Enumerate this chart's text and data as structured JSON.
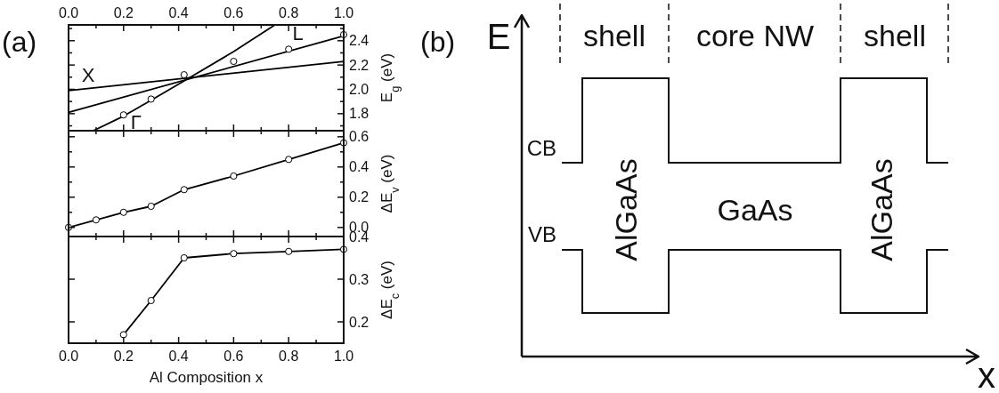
{
  "chart_data": [
    {
      "type": "line",
      "ylabel": "E$_{g}$ (eV)",
      "annotations": [
        "(a)"
      ],
      "xlim": [
        0,
        1
      ],
      "xticks": [
        0,
        {
          "value": 0.1,
          "label": null
        },
        0.2,
        {
          "value": 0.3,
          "label": null
        },
        0.4,
        {
          "value": 0.5,
          "label": null
        },
        0.6,
        {
          "value": 0.7,
          "label": null
        },
        0.8,
        {
          "value": 0.9,
          "label": null
        },
        1.0
      ],
      "x2lim": [
        0,
        1
      ],
      "x2ticks": [
        {
          "value": 0,
          "label": "0.0"
        },
        0.2,
        0.4,
        0.6,
        0.8,
        {
          "value": 1,
          "label": "1.0"
        }
      ],
      "ylim": [
        1.66,
        2.53
      ],
      "yticks": [
        {
          "value": 1.7,
          "label": null
        },
        1.8,
        {
          "value": 1.9,
          "label": null
        },
        {
          "value": 2.0,
          "label": "2.0"
        },
        {
          "value": 2.1,
          "label": null
        },
        2.2,
        {
          "value": 2.3,
          "label": null
        },
        2.4,
        {
          "value": 2.5,
          "label": null
        }
      ],
      "tick_labels": "y",
      "grid": false,
      "series": [
        {
          "type": "line",
          "name": "Γ",
          "color": "#000000",
          "x": [
            0.09,
            0.2,
            0.3,
            0.42,
            0.6,
            0.75
          ],
          "values": [
            1.66,
            1.78,
            1.91,
            2.07,
            2.31,
            2.53
          ]
        },
        {
          "type": "line",
          "name": "L",
          "color": "#000000",
          "x": [
            0,
            1
          ],
          "values": [
            1.81,
            2.44
          ]
        },
        {
          "type": "line",
          "name": "X",
          "color": "#000000",
          "x": [
            0,
            1
          ],
          "values": [
            1.99,
            2.23
          ]
        },
        {
          "type": "scatter",
          "marker": "circle",
          "color": "#000000",
          "x": [
            0.2,
            0.3,
            0.42,
            0.6,
            0.8,
            1.0
          ],
          "values": [
            1.79,
            1.92,
            2.12,
            2.23,
            2.33,
            2.45
          ]
        }
      ]
    },
    {
      "type": "line",
      "ylabel": "ΔE$_{v}$ (eV)",
      "xlim": [
        0,
        1
      ],
      "xticks": [
        0,
        {
          "value": 0.1,
          "label": null
        },
        0.2,
        {
          "value": 0.3,
          "label": null
        },
        0.4,
        {
          "value": 0.5,
          "label": null
        },
        0.6,
        {
          "value": 0.7,
          "label": null
        },
        0.8,
        {
          "value": 0.9,
          "label": null
        },
        1.0
      ],
      "ylim": [
        -0.06,
        0.64
      ],
      "yticks": [
        {
          "value": 0,
          "label": "0.0"
        },
        {
          "value": 0.1,
          "label": null
        },
        0.2,
        {
          "value": 0.3,
          "label": null
        },
        0.4,
        {
          "value": 0.5,
          "label": null
        },
        0.6
      ],
      "tick_labels": "y",
      "grid": false,
      "series": [
        {
          "type": "line",
          "marker": "circle",
          "color": "#000000",
          "x": [
            0,
            0.1,
            0.2,
            0.3,
            0.42,
            0.6,
            0.8,
            1.0
          ],
          "values": [
            0,
            0.05,
            0.1,
            0.14,
            0.25,
            0.34,
            0.45,
            0.56
          ]
        }
      ]
    },
    {
      "type": "line",
      "xlabel": "Al Composition x",
      "ylabel": "ΔE$_{c}$ (eV)",
      "xlim": [
        0,
        1
      ],
      "xticks": [
        {
          "value": 0,
          "label": "0.0"
        },
        {
          "value": 0.1,
          "label": null
        },
        0.2,
        {
          "value": 0.3,
          "label": null
        },
        0.4,
        {
          "value": 0.5,
          "label": null
        },
        0.6,
        {
          "value": 0.7,
          "label": null
        },
        0.8,
        {
          "value": 0.9,
          "label": null
        },
        {
          "value": 1,
          "label": "1.0"
        }
      ],
      "ylim": [
        0.15,
        0.4
      ],
      "yticks": [
        0.2,
        0.3,
        0.4
      ],
      "grid": false,
      "series": [
        {
          "type": "line",
          "marker": "circle",
          "color": "#000000",
          "x": [
            0.2,
            0.3,
            0.42,
            0.6,
            0.8,
            1.0
          ],
          "values": [
            0.17,
            0.25,
            0.35,
            0.36,
            0.365,
            0.37
          ]
        }
      ]
    },
    {
      "type": "other",
      "title": "(b)",
      "annotations": [
        "E",
        "x",
        "shell",
        "core NW",
        "shell",
        "CB",
        "VB",
        "AlGaAs",
        "GaAs",
        "AlGaAs"
      ]
    }
  ]
}
